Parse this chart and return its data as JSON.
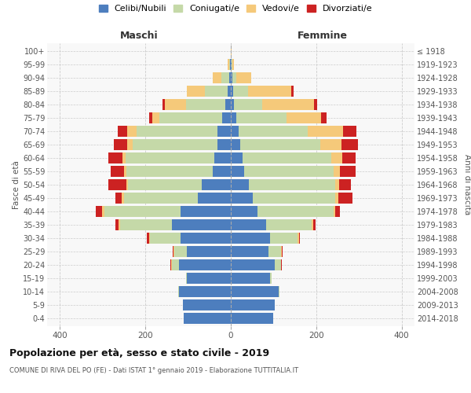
{
  "age_groups": [
    "0-4",
    "5-9",
    "10-14",
    "15-19",
    "20-24",
    "25-29",
    "30-34",
    "35-39",
    "40-44",
    "45-49",
    "50-54",
    "55-59",
    "60-64",
    "65-69",
    "70-74",
    "75-79",
    "80-84",
    "85-89",
    "90-94",
    "95-99",
    "100+"
  ],
  "birth_years": [
    "2014-2018",
    "2009-2013",
    "2004-2008",
    "1999-2003",
    "1994-1998",
    "1989-1993",
    "1984-1988",
    "1979-1983",
    "1974-1978",
    "1969-1973",
    "1964-1968",
    "1959-1963",
    "1954-1958",
    "1949-1953",
    "1944-1948",
    "1939-1943",
    "1934-1938",
    "1929-1933",
    "1924-1928",
    "1919-1923",
    "≤ 1918"
  ],
  "colors": {
    "celibe": "#4d7ebe",
    "coniugato": "#c5d9a8",
    "vedovo": "#f5c97a",
    "divorziato": "#cc2222"
  },
  "maschi": {
    "celibe": [
      110,
      112,
      122,
      102,
      122,
      102,
      118,
      138,
      118,
      78,
      68,
      42,
      38,
      32,
      32,
      20,
      12,
      8,
      4,
      2,
      0
    ],
    "coniugato": [
      0,
      0,
      2,
      3,
      15,
      30,
      72,
      122,
      178,
      172,
      172,
      202,
      208,
      198,
      188,
      148,
      92,
      52,
      18,
      2,
      0
    ],
    "vedovo": [
      0,
      0,
      0,
      0,
      2,
      2,
      2,
      2,
      5,
      5,
      5,
      5,
      8,
      12,
      22,
      15,
      50,
      42,
      20,
      3,
      0
    ],
    "divorziato": [
      0,
      0,
      0,
      0,
      2,
      2,
      5,
      8,
      15,
      15,
      42,
      32,
      32,
      32,
      22,
      8,
      5,
      0,
      0,
      0,
      0
    ]
  },
  "femmine": {
    "nubile": [
      100,
      102,
      112,
      92,
      102,
      88,
      92,
      82,
      62,
      52,
      42,
      32,
      28,
      22,
      18,
      12,
      8,
      5,
      3,
      1,
      0
    ],
    "coniugata": [
      0,
      0,
      2,
      3,
      15,
      30,
      65,
      108,
      178,
      192,
      202,
      208,
      208,
      188,
      162,
      118,
      65,
      35,
      10,
      2,
      0
    ],
    "vedova": [
      0,
      0,
      0,
      0,
      1,
      1,
      2,
      3,
      5,
      8,
      10,
      15,
      25,
      50,
      82,
      82,
      122,
      102,
      35,
      5,
      1
    ],
    "divorziata": [
      0,
      0,
      0,
      0,
      1,
      2,
      3,
      5,
      10,
      32,
      28,
      38,
      32,
      38,
      32,
      12,
      8,
      5,
      0,
      0,
      0
    ]
  },
  "title": "Popolazione per età, sesso e stato civile - 2019",
  "subtitle": "COMUNE DI RIVA DEL PO (FE) - Dati ISTAT 1° gennaio 2019 - Elaborazione TUTTITALIA.IT",
  "xlabel_maschi": "Maschi",
  "xlabel_femmine": "Femmine",
  "ylabel_left": "Fasce di età",
  "ylabel_right": "Anni di nascita",
  "xlim": 430,
  "legend_labels": [
    "Celibi/Nubili",
    "Coniugati/e",
    "Vedovi/e",
    "Divorziati/e"
  ],
  "bar_height": 0.85
}
